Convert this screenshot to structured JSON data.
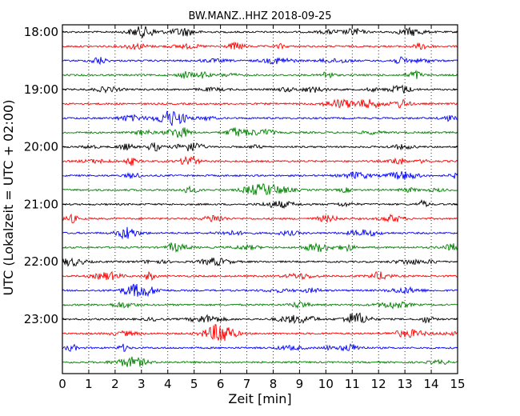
{
  "chart_data": {
    "type": "line",
    "title": "BW.MANZ..HHZ 2018-09-25",
    "xlabel": "Zeit  [min]",
    "ylabel": "UTC (Lokalzeit = UTC + 02:00)",
    "xlim": [
      0,
      15
    ],
    "x_ticks": [
      "0",
      "1",
      "2",
      "3",
      "4",
      "5",
      "6",
      "7",
      "8",
      "9",
      "10",
      "11",
      "12",
      "13",
      "14",
      "15"
    ],
    "y_ticks": [
      "18:00",
      "19:00",
      "20:00",
      "21:00",
      "22:00",
      "23:00"
    ],
    "grid": "vertical dotted",
    "row_interval_minutes": 15,
    "colors": [
      "#000000",
      "#ff0000",
      "#0000ff",
      "#008000"
    ],
    "rows": [
      {
        "start": "18:00",
        "color": "#000000"
      },
      {
        "start": "18:15",
        "color": "#ff0000"
      },
      {
        "start": "18:30",
        "color": "#0000ff"
      },
      {
        "start": "18:45",
        "color": "#008000"
      },
      {
        "start": "19:00",
        "color": "#000000"
      },
      {
        "start": "19:15",
        "color": "#ff0000"
      },
      {
        "start": "19:30",
        "color": "#0000ff"
      },
      {
        "start": "19:45",
        "color": "#008000"
      },
      {
        "start": "20:00",
        "color": "#000000"
      },
      {
        "start": "20:15",
        "color": "#ff0000"
      },
      {
        "start": "20:30",
        "color": "#0000ff"
      },
      {
        "start": "20:45",
        "color": "#008000"
      },
      {
        "start": "21:00",
        "color": "#000000"
      },
      {
        "start": "21:15",
        "color": "#ff0000"
      },
      {
        "start": "21:30",
        "color": "#0000ff"
      },
      {
        "start": "21:45",
        "color": "#008000"
      },
      {
        "start": "22:00",
        "color": "#000000"
      },
      {
        "start": "22:15",
        "color": "#ff0000"
      },
      {
        "start": "22:30",
        "color": "#0000ff"
      },
      {
        "start": "22:45",
        "color": "#008000"
      },
      {
        "start": "23:00",
        "color": "#000000"
      },
      {
        "start": "23:15",
        "color": "#ff0000"
      },
      {
        "start": "23:30",
        "color": "#0000ff"
      },
      {
        "start": "23:45",
        "color": "#008000"
      }
    ]
  }
}
